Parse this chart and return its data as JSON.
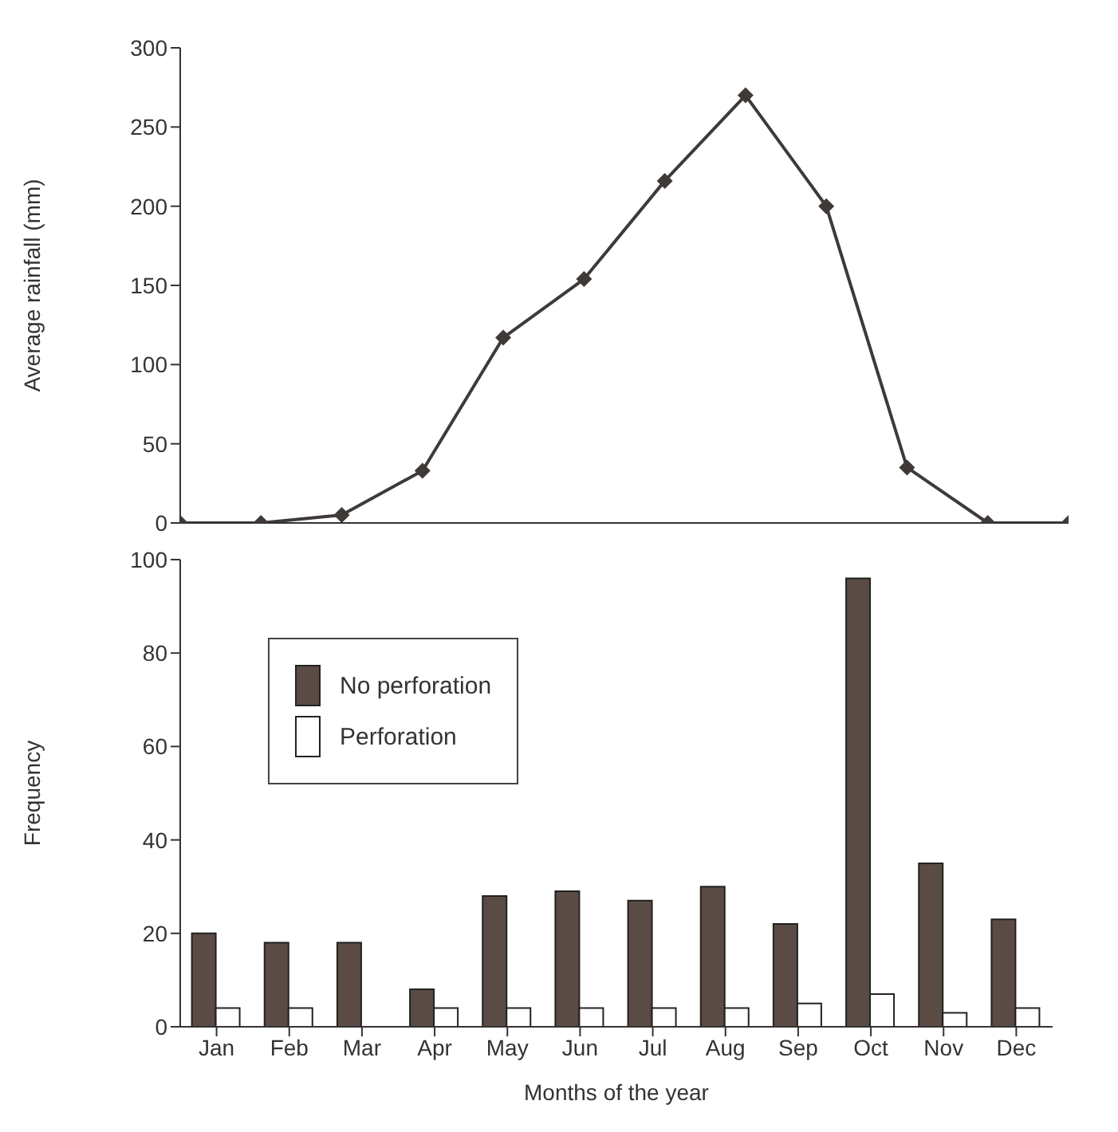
{
  "chart_data": [
    {
      "type": "line",
      "ylabel": "Average rainfall (mm)",
      "categories": [
        null,
        null,
        null,
        null,
        null,
        null,
        null,
        null,
        null,
        null,
        null,
        null
      ],
      "series": [
        {
          "color": "#3f3a38",
          "values": [
            0,
            0,
            5,
            33,
            117,
            154,
            216,
            270,
            200,
            35,
            0,
            0
          ]
        }
      ],
      "ylim": [
        0,
        300
      ],
      "yticks": [
        0,
        50,
        100,
        150,
        200,
        250,
        300
      ],
      "legend": false,
      "marker": "diamond",
      "line_style": "solid",
      "tick_labels": "y"
    },
    {
      "type": "bar",
      "xlabel": "Months of the year",
      "ylabel": "Frequency",
      "categories": [
        "Jan",
        "Feb",
        "Mar",
        "Apr",
        "May",
        "Jun",
        "Jul",
        "Aug",
        "Sep",
        "Oct",
        "Nov",
        "Dec"
      ],
      "series": [
        {
          "name": "No perforation",
          "color": "#5b4b45",
          "values": [
            20,
            18,
            18,
            8,
            28,
            29,
            27,
            30,
            22,
            96,
            35,
            23
          ]
        },
        {
          "name": "Perforation",
          "color": "#ffffff",
          "values": [
            4,
            4,
            0,
            4,
            4,
            4,
            4,
            4,
            5,
            7,
            3,
            4
          ]
        }
      ],
      "ylim": [
        0,
        100
      ],
      "yticks": [
        0,
        20,
        40,
        60,
        80,
        100
      ],
      "legend": "top left"
    }
  ]
}
